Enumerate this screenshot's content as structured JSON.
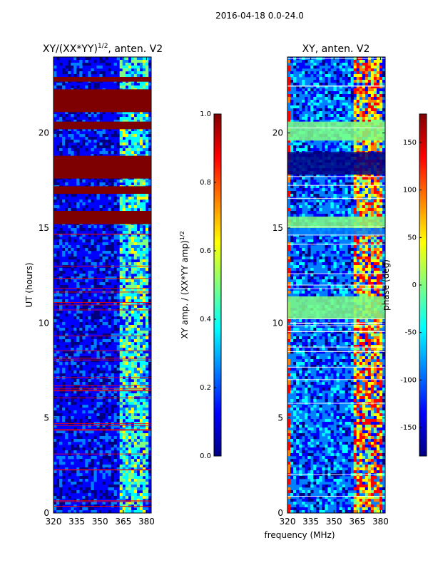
{
  "figure": {
    "suptitle": "2016-04-18 0.0-24.0",
    "shared_xlabel": "frequency (MHz)"
  },
  "chart_data": [
    {
      "type": "heatmap",
      "title_main": "XY/(XX*YY)",
      "title_exp": "1/2",
      "title_suffix": ", anten. V2",
      "xlabel": "",
      "ylabel": "UT (hours)",
      "xlim": [
        320,
        383
      ],
      "ylim": [
        0,
        24
      ],
      "xticks": [
        320,
        335,
        350,
        365,
        380
      ],
      "yticks": [
        0,
        5,
        10,
        15,
        20
      ],
      "solid_bands_hours": [
        [
          22.7,
          22.95
        ],
        [
          21.1,
          22.3
        ],
        [
          20.2,
          20.6
        ],
        [
          17.6,
          18.8
        ],
        [
          16.8,
          17.2
        ],
        [
          15.2,
          15.9
        ]
      ],
      "colorbar": {
        "label_main": "XY amp. / (XX*YY amp)",
        "label_exp": "1/2",
        "min": 0.0,
        "max": 1.0,
        "ticks": [
          "0.0",
          "0.2",
          "0.4",
          "0.6",
          "0.8",
          "1.0"
        ],
        "colormap": "jet"
      }
    },
    {
      "type": "heatmap",
      "title": "XY, anten. V2",
      "xlabel": "frequency (MHz)",
      "ylabel": "",
      "xlim": [
        320,
        383
      ],
      "ylim": [
        0,
        24
      ],
      "xticks": [
        320,
        335,
        350,
        365,
        380
      ],
      "yticks": [
        0,
        5,
        10,
        15,
        20
      ],
      "colorbar": {
        "label": "phase (deg)",
        "min": -180,
        "max": 180,
        "ticks": [
          "-150",
          "-100",
          "-50",
          "0",
          "50",
          "100",
          "150"
        ],
        "colormap": "jet"
      }
    }
  ],
  "colors": {
    "jet": [
      "#00007f",
      "#0000ff",
      "#0080ff",
      "#00ffff",
      "#80ff80",
      "#ffff00",
      "#ff8000",
      "#ff0000",
      "#7f0000"
    ],
    "axis": "#000000"
  }
}
